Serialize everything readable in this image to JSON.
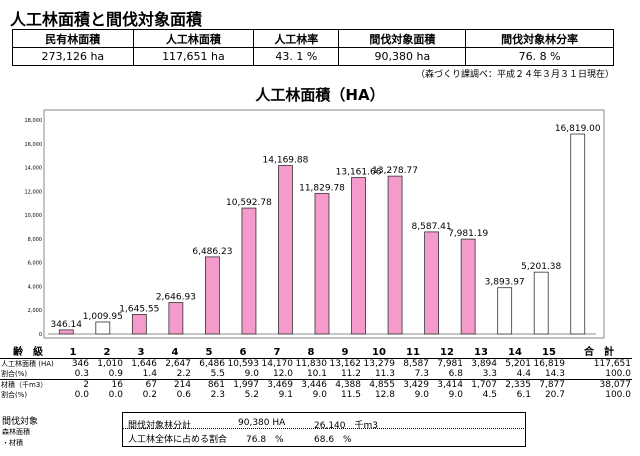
{
  "title": "人工林面積と間伐対象面積",
  "summary": {
    "headers": [
      "民有林面積",
      "人工林面積",
      "人工林率",
      "間伐対象面積",
      "間伐対象林分率"
    ],
    "values": [
      "273,126 ha",
      "117,651 ha",
      "43. 1 %",
      "90,380 ha",
      "76. 8 %"
    ]
  },
  "source": "（森づくり課調べ：平成２４年３月３１日現在）",
  "chart_data": {
    "type": "bar",
    "title": "人工林面積（HA）",
    "categories": [
      "1",
      "2",
      "3",
      "4",
      "5",
      "6",
      "7",
      "8",
      "9",
      "10",
      "11",
      "12",
      "13",
      "14",
      "15"
    ],
    "values": [
      346.14,
      1009.95,
      1645.55,
      2646.93,
      6486.23,
      10592.78,
      14169.88,
      11829.78,
      13161.66,
      13278.77,
      8587.41,
      7981.19,
      3893.97,
      5201.38,
      16819.0
    ],
    "labels": [
      "346.14",
      "1,009.95",
      "1,645.55",
      "2,646.93",
      "6,486.23",
      "10,592.78",
      "14,169.88",
      "11,829.78",
      "13,161.66",
      "13,278.77",
      "8,587.41",
      "7,981.19",
      "3,893.97",
      "5,201.38",
      "16,819.00"
    ],
    "highlighted": [
      true,
      false,
      true,
      true,
      true,
      true,
      true,
      true,
      true,
      true,
      true,
      true,
      false,
      false,
      false
    ],
    "ylim": [
      0,
      18000
    ],
    "yticks": [
      "0",
      "2,000",
      "4,000",
      "6,000",
      "8,000",
      "10,000",
      "12,000",
      "14,000",
      "16,000",
      "18,000"
    ],
    "colors": {
      "highlight": "#f59bcb",
      "plain": "#ffffff",
      "frame": "#888888"
    }
  },
  "detail": {
    "header": [
      "齢　級",
      "1",
      "2",
      "3",
      "4",
      "5",
      "6",
      "7",
      "8",
      "9",
      "10",
      "11",
      "12",
      "13",
      "14",
      "15",
      "合　計"
    ],
    "rows": [
      {
        "label": "人工林面積 (HA)",
        "values": [
          "346",
          "1,010",
          "1,646",
          "2,647",
          "6,486",
          "10,593",
          "14,170",
          "11,830",
          "13,162",
          "13,279",
          "8,587",
          "7,981",
          "3,894",
          "5,201",
          "16,819",
          "117,651"
        ]
      },
      {
        "label": "割合(%)",
        "values": [
          "0.3",
          "0.9",
          "1.4",
          "2.2",
          "5.5",
          "9.0",
          "12.0",
          "10.1",
          "11.2",
          "11.3",
          "7.3",
          "6.8",
          "3.3",
          "4.4",
          "14.3",
          "100.0"
        ]
      },
      {
        "label": "材積（千m3）",
        "values": [
          "2",
          "16",
          "67",
          "214",
          "861",
          "1,997",
          "3,469",
          "3,446",
          "4,388",
          "4,855",
          "3,429",
          "3,414",
          "1,707",
          "2,335",
          "7,877",
          "38,077"
        ]
      },
      {
        "label": "割合(%)",
        "values": [
          "0.0",
          "0.0",
          "0.2",
          "0.6",
          "2.3",
          "5.2",
          "9.1",
          "9.0",
          "11.5",
          "12.8",
          "9.0",
          "9.0",
          "4.5",
          "6.1",
          "20.7",
          "100.0"
        ]
      }
    ]
  },
  "bottom": {
    "label1": "間伐対象",
    "label2": "森林面積",
    "label3": "・材積",
    "row1_label": "間伐対象林分計",
    "row1_area": "90,380 HA",
    "row1_volume": "26,140　千m3",
    "row2_label": "人工林全体に占める割合",
    "row2_area": "76.8　%",
    "row2_volume": "68.6　%"
  }
}
